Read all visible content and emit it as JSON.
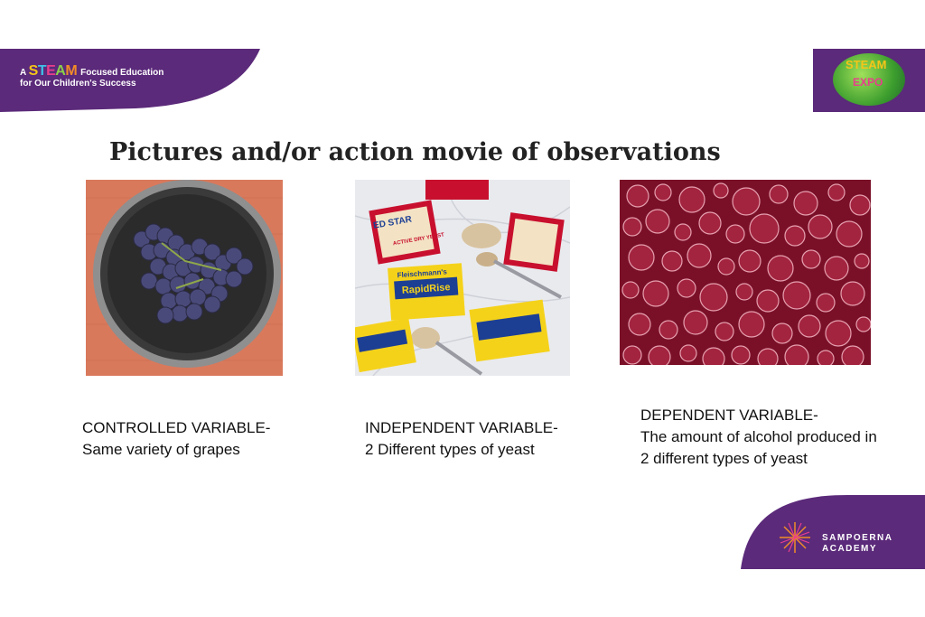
{
  "header": {
    "tagline_prefix": "A",
    "tagline_brand": "STEAM",
    "tagline_suffix": "Focused Education",
    "tagline_line2": "for Our Children's Success"
  },
  "expo_logo": {
    "word1": "STEAM",
    "word2": "EXPO"
  },
  "title": "Pictures and/or action movie of observations",
  "panels": [
    {
      "image_subject": "bowl of grapes",
      "caption_heading": "CONTROLLED VARIABLE-",
      "caption_body": "Same variety of grapes"
    },
    {
      "image_subject": "yeast packets",
      "caption_heading": "INDEPENDENT VARIABLE-",
      "caption_body": "2 Different types of yeast"
    },
    {
      "image_subject": "fermentation bubbles",
      "caption_heading": "DEPENDENT VARIABLE-",
      "caption_body": "The amount of alcohol produced in 2 different types of yeast"
    }
  ],
  "yeast_photo": {
    "packet_brand": "Fleischmann's",
    "packet_product": "RapidRise",
    "red_packet_text": "ED STAR",
    "red_packet_sub": "ACTIVE DRY YEAST"
  },
  "footer": {
    "academy_line1": "SAMPOERNA",
    "academy_line2": "ACADEMY"
  },
  "colors": {
    "brand_purple": "#5b2a7a",
    "text": "#111111"
  }
}
